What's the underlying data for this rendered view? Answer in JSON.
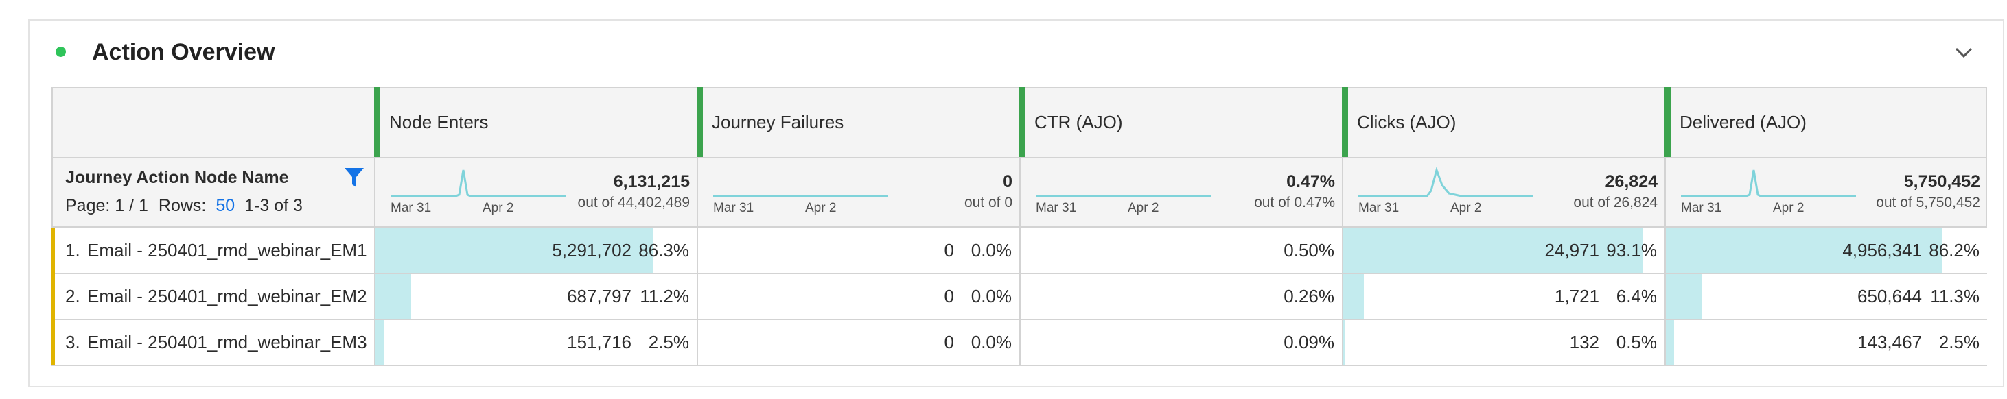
{
  "header": {
    "title": "Action Overview"
  },
  "table": {
    "dimension": {
      "name": "Journey Action Node Name",
      "page": "Page: 1 / 1",
      "rows_label": "Rows:",
      "rows": "50",
      "range": "1-3 of 3"
    },
    "columns": [
      {
        "name": "Node Enters",
        "total": "6,131,215",
        "out_of": "out of 44,402,489",
        "start": "Mar 31",
        "end": "Apr 2"
      },
      {
        "name": "Journey Failures",
        "total": "0",
        "out_of": "out of 0",
        "start": "Mar 31",
        "end": "Apr 2"
      },
      {
        "name": "CTR (AJO)",
        "total": "0.47%",
        "out_of": "out of 0.47%",
        "start": "Mar 31",
        "end": "Apr 2"
      },
      {
        "name": "Clicks (AJO)",
        "total": "26,824",
        "out_of": "out of 26,824",
        "start": "Mar 31",
        "end": "Apr 2"
      },
      {
        "name": "Delivered (AJO)",
        "total": "5,750,452",
        "out_of": "out of 5,750,452",
        "start": "Mar 31",
        "end": "Apr 2"
      }
    ],
    "rows": [
      {
        "rank": "1.",
        "name": "Email - 250401_rmd_webinar_EM1",
        "cells": [
          {
            "value": "5,291,702",
            "pct": "86.3%"
          },
          {
            "value": "0",
            "pct": "0.0%"
          },
          {
            "value": "0.50%"
          },
          {
            "value": "24,971",
            "pct": "93.1%"
          },
          {
            "value": "4,956,341",
            "pct": "86.2%"
          }
        ]
      },
      {
        "rank": "2.",
        "name": "Email - 250401_rmd_webinar_EM2",
        "cells": [
          {
            "value": "687,797",
            "pct": "11.2%"
          },
          {
            "value": "0",
            "pct": "0.0%"
          },
          {
            "value": "0.26%"
          },
          {
            "value": "1,721",
            "pct": "6.4%"
          },
          {
            "value": "650,644",
            "pct": "11.3%"
          }
        ]
      },
      {
        "rank": "3.",
        "name": "Email - 250401_rmd_webinar_EM3",
        "cells": [
          {
            "value": "151,716",
            "pct": "2.5%"
          },
          {
            "value": "0",
            "pct": "0.0%"
          },
          {
            "value": "0.09%"
          },
          {
            "value": "132",
            "pct": "0.5%"
          },
          {
            "value": "143,467",
            "pct": "2.5%"
          }
        ]
      }
    ]
  }
}
